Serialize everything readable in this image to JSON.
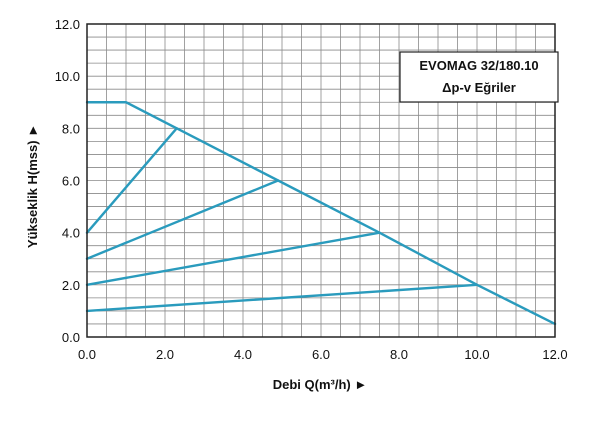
{
  "chart_data": {
    "type": "line",
    "title_box": {
      "line1": "EVOMAG 32/180.10",
      "line2": "Δp-v Eğriler"
    },
    "xlabel": "Debi Q(m³/h) ►",
    "ylabel": "Yükseklik H(mss) ►",
    "xlim": [
      0,
      12
    ],
    "ylim": [
      0,
      12
    ],
    "x_ticks": [
      "0.0",
      "2.0",
      "4.0",
      "6.0",
      "8.0",
      "10.0",
      "12.0"
    ],
    "y_ticks": [
      "0.0",
      "2.0",
      "4.0",
      "6.0",
      "8.0",
      "10.0",
      "12.0"
    ],
    "grid": true,
    "line_color": "#2a9bbd",
    "series": [
      {
        "x": [
          0,
          1.0,
          2.3,
          4.9,
          7.5,
          10.0,
          12.0
        ],
        "y": [
          9.0,
          9.0,
          8.0,
          6.0,
          4.0,
          2.0,
          0.5
        ]
      },
      {
        "x": [
          0,
          2.3
        ],
        "y": [
          4.0,
          8.0
        ]
      },
      {
        "x": [
          0,
          4.9
        ],
        "y": [
          3.0,
          6.0
        ]
      },
      {
        "x": [
          0,
          7.5
        ],
        "y": [
          2.0,
          4.0
        ]
      },
      {
        "x": [
          0,
          10.0
        ],
        "y": [
          1.0,
          2.0
        ]
      }
    ]
  }
}
